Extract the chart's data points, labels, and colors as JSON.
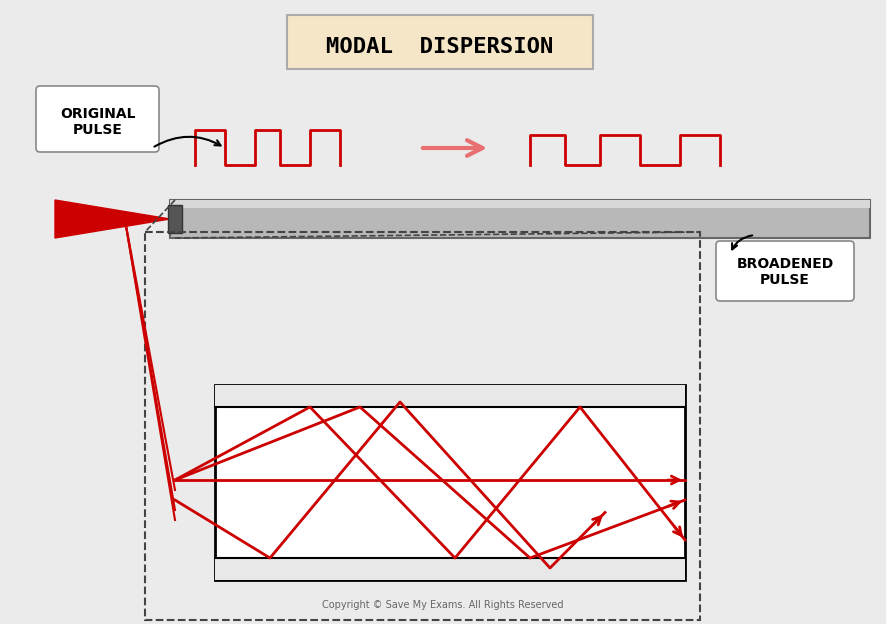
{
  "title": "MODAL  DISPERSION",
  "title_box_color": "#f5e6c8",
  "title_box_edge": "#ccaa66",
  "bg_color": "#f0f0f0",
  "fig_bg": "#ebebeb",
  "fiber_color": "#b0b0b0",
  "fiber_edge": "#888888",
  "red_color": "#cc0000",
  "pink_arrow_color": "#e87070",
  "pulse_color": "#cc0000",
  "label_original": "ORIGINAL\nPULSE",
  "label_broadened": "BROADENED\nPULSE",
  "copyright": "Copyright © Save My Exams. All Rights Reserved"
}
